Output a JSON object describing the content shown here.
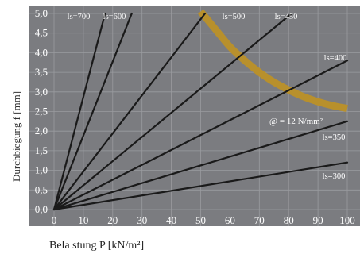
{
  "chart_data": {
    "type": "line",
    "xlabel": "Bela stung P [kN/m²]",
    "ylabel": "Durchbiegung f [mm]",
    "xlim": [
      0,
      100
    ],
    "ylim": [
      0,
      5
    ],
    "x_ticks": [
      0,
      10,
      20,
      30,
      40,
      50,
      60,
      70,
      80,
      90,
      100
    ],
    "y_ticks": [
      "0,0",
      "0,5",
      "1,0",
      "1,5",
      "2,0",
      "2,5",
      "3,0",
      "3,5",
      "4,0",
      "4,5",
      "5,0"
    ],
    "grid": true,
    "series": [
      {
        "name": "ls=700",
        "x": [
          0,
          17.4
        ],
        "y": [
          0,
          5.0
        ]
      },
      {
        "name": "ls=600",
        "x": [
          0,
          26.5
        ],
        "y": [
          0,
          5.0
        ]
      },
      {
        "name": "ls=500",
        "x": [
          0,
          51.5
        ],
        "y": [
          0,
          5.0
        ]
      },
      {
        "name": "ls=450",
        "x": [
          0,
          81.0
        ],
        "y": [
          0,
          5.0
        ]
      },
      {
        "name": "ls=400",
        "x": [
          0,
          100
        ],
        "y": [
          0,
          3.8
        ]
      },
      {
        "name": "ls=350",
        "x": [
          0,
          100
        ],
        "y": [
          0,
          2.25
        ]
      },
      {
        "name": "ls=300",
        "x": [
          0,
          100
        ],
        "y": [
          0,
          1.2
        ]
      }
    ],
    "stress_curve": {
      "label": "@ = 12 N/mm²",
      "points": [
        [
          50,
          5.05
        ],
        [
          55,
          4.6
        ],
        [
          60,
          4.15
        ],
        [
          65,
          3.8
        ],
        [
          70,
          3.5
        ],
        [
          75,
          3.25
        ],
        [
          80,
          3.05
        ],
        [
          85,
          2.88
        ],
        [
          90,
          2.75
        ],
        [
          95,
          2.65
        ],
        [
          100,
          2.58
        ]
      ]
    }
  },
  "colors": {
    "plot_background": "#7b7c80",
    "grid": "#9a9b9f",
    "series_line": "#1a1a1a",
    "stress_curve": "#b8902c",
    "tick_text": "#ffffff"
  }
}
